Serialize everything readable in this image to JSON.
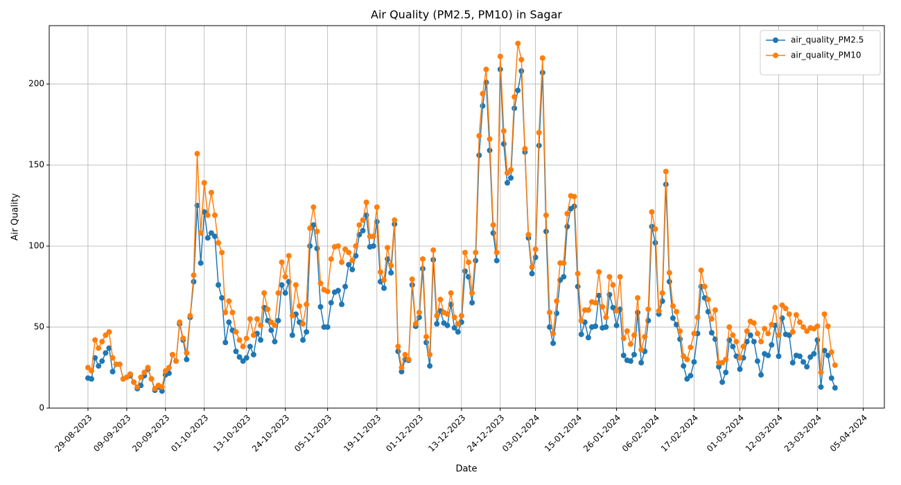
{
  "chart_data": {
    "type": "line",
    "title": "Air Quality (PM2.5, PM10) in Sagar",
    "xlabel": "Date",
    "ylabel": "Air Quality",
    "x": [
      "29-08-2023",
      "30-08-2023",
      "31-08-2023",
      "01-09-2023",
      "02-09-2023",
      "03-09-2023",
      "04-09-2023",
      "05-09-2023",
      "06-09-2023",
      "07-09-2023",
      "08-09-2023",
      "09-09-2023",
      "10-09-2023",
      "11-09-2023",
      "12-09-2023",
      "13-09-2023",
      "14-09-2023",
      "15-09-2023",
      "16-09-2023",
      "17-09-2023",
      "18-09-2023",
      "19-09-2023",
      "20-09-2023",
      "21-09-2023",
      "22-09-2023",
      "23-09-2023",
      "24-09-2023",
      "25-09-2023",
      "26-09-2023",
      "27-09-2023",
      "28-09-2023",
      "29-09-2023",
      "30-09-2023",
      "01-10-2023",
      "02-10-2023",
      "03-10-2023",
      "04-10-2023",
      "05-10-2023",
      "06-10-2023",
      "07-10-2023",
      "08-10-2023",
      "09-10-2023",
      "10-10-2023",
      "11-10-2023",
      "12-10-2023",
      "13-10-2023",
      "14-10-2023",
      "15-10-2023",
      "16-10-2023",
      "17-10-2023",
      "18-10-2023",
      "19-10-2023",
      "20-10-2023",
      "21-10-2023",
      "22-10-2023",
      "23-10-2023",
      "24-10-2023",
      "25-10-2023",
      "26-10-2023",
      "27-10-2023",
      "28-10-2023",
      "29-10-2023",
      "30-10-2023",
      "31-10-2023",
      "01-11-2023",
      "02-11-2023",
      "03-11-2023",
      "04-11-2023",
      "05-11-2023",
      "06-11-2023",
      "07-11-2023",
      "08-11-2023",
      "09-11-2023",
      "10-11-2023",
      "11-11-2023",
      "12-11-2023",
      "13-11-2023",
      "14-11-2023",
      "15-11-2023",
      "16-11-2023",
      "17-11-2023",
      "18-11-2023",
      "19-11-2023",
      "20-11-2023",
      "21-11-2023",
      "22-11-2023",
      "23-11-2023",
      "24-11-2023",
      "25-11-2023",
      "26-11-2023",
      "27-11-2023",
      "28-11-2023",
      "29-11-2023",
      "30-11-2023",
      "01-12-2023",
      "02-12-2023",
      "03-12-2023",
      "04-12-2023",
      "05-12-2023",
      "06-12-2023",
      "07-12-2023",
      "08-12-2023",
      "09-12-2023",
      "10-12-2023",
      "11-12-2023",
      "12-12-2023",
      "13-12-2023",
      "14-12-2023",
      "15-12-2023",
      "16-12-2023",
      "17-12-2023",
      "18-12-2023",
      "19-12-2023",
      "20-12-2023",
      "21-12-2023",
      "22-12-2023",
      "23-12-2023",
      "24-12-2023",
      "25-12-2023",
      "26-12-2023",
      "27-12-2023",
      "28-12-2023",
      "29-12-2023",
      "30-12-2023",
      "31-12-2023",
      "01-01-2024",
      "02-01-2024",
      "03-01-2024",
      "04-01-2024",
      "05-01-2024",
      "06-01-2024",
      "07-01-2024",
      "08-01-2024",
      "09-01-2024",
      "10-01-2024",
      "11-01-2024",
      "12-01-2024",
      "13-01-2024",
      "14-01-2024",
      "15-01-2024",
      "16-01-2024",
      "17-01-2024",
      "18-01-2024",
      "19-01-2024",
      "20-01-2024",
      "21-01-2024",
      "22-01-2024",
      "23-01-2024",
      "24-01-2024",
      "25-01-2024",
      "26-01-2024",
      "27-01-2024",
      "28-01-2024",
      "29-01-2024",
      "30-01-2024",
      "31-01-2024",
      "01-02-2024",
      "02-02-2024",
      "03-02-2024",
      "04-02-2024",
      "05-02-2024",
      "06-02-2024",
      "07-02-2024",
      "08-02-2024",
      "09-02-2024",
      "10-02-2024",
      "11-02-2024",
      "12-02-2024",
      "13-02-2024",
      "14-02-2024",
      "15-02-2024",
      "16-02-2024",
      "17-02-2024",
      "18-02-2024",
      "19-02-2024",
      "20-02-2024",
      "21-02-2024",
      "22-02-2024",
      "23-02-2024",
      "24-02-2024",
      "25-02-2024",
      "26-02-2024",
      "27-02-2024",
      "28-02-2024",
      "29-02-2024",
      "01-03-2024",
      "02-03-2024",
      "03-03-2024",
      "04-03-2024",
      "05-03-2024",
      "06-03-2024",
      "07-03-2024",
      "08-03-2024",
      "09-03-2024",
      "10-03-2024",
      "11-03-2024",
      "12-03-2024",
      "13-03-2024",
      "14-03-2024",
      "15-03-2024",
      "16-03-2024",
      "17-03-2024",
      "18-03-2024",
      "19-03-2024",
      "20-03-2024",
      "21-03-2024",
      "22-03-2024",
      "23-03-2024",
      "24-03-2024",
      "25-03-2024",
      "26-03-2024",
      "27-03-2024",
      "28-03-2024"
    ],
    "series": [
      {
        "name": "air_quality_PM2.5",
        "color": "#1f77b4",
        "values": [
          18.5,
          18,
          31,
          26,
          29,
          34,
          37,
          22.5,
          27,
          27,
          18,
          19,
          20,
          16,
          12,
          14,
          20,
          24,
          18,
          11,
          13,
          10.5,
          20.5,
          21.5,
          33,
          29,
          52,
          42,
          30,
          56,
          78,
          125,
          89.5,
          121,
          105,
          108,
          106,
          76,
          68,
          40.5,
          53,
          48,
          35,
          31.5,
          29,
          31,
          38,
          33,
          46,
          42,
          62,
          54,
          48,
          41,
          54,
          76,
          71,
          78,
          45,
          58,
          53,
          42,
          47,
          100,
          113,
          98.5,
          62.5,
          50,
          50,
          65,
          71.5,
          72.5,
          64,
          75,
          88.5,
          85.5,
          94,
          107,
          109.5,
          119,
          99.5,
          100,
          115,
          78,
          74,
          92,
          83.5,
          113.5,
          35,
          22.5,
          30,
          29.5,
          76,
          50.5,
          56,
          86,
          40.5,
          26,
          91.5,
          52,
          60,
          52.5,
          51,
          64,
          49.5,
          47,
          53,
          84.5,
          81,
          65,
          91,
          156,
          186.5,
          201,
          159,
          108,
          91,
          209,
          163,
          139,
          142,
          185,
          196,
          208,
          158,
          105,
          83,
          93,
          162,
          207,
          109,
          50,
          40,
          58.5,
          79,
          81,
          112,
          123,
          124.5,
          75,
          45.5,
          53,
          43.5,
          50,
          50.5,
          69.5,
          49.5,
          50,
          70,
          62,
          51,
          61,
          32.5,
          29.5,
          29,
          33,
          59,
          28,
          35,
          54,
          112,
          102,
          58,
          66,
          138,
          78,
          55.5,
          51.5,
          42.5,
          26,
          18,
          20,
          28.5,
          46,
          75,
          68,
          59.5,
          46.5,
          42.5,
          25.5,
          16,
          22,
          42,
          38,
          32,
          24,
          31,
          41,
          45,
          41,
          29,
          20.5,
          33.5,
          32.5,
          39,
          51,
          32,
          55.5,
          45.5,
          45,
          28,
          32.5,
          32,
          28.5,
          25.5,
          31.5,
          33.5,
          42,
          13,
          35.5,
          32.5,
          18.5,
          12.5
        ]
      },
      {
        "name": "air_quality_PM10",
        "color": "#ff7f0e",
        "values": [
          25,
          23,
          42,
          37,
          41,
          45,
          47,
          31,
          27,
          27,
          18,
          19,
          21,
          16,
          13,
          19,
          22,
          25,
          18,
          12,
          14,
          13,
          23,
          25,
          33,
          29,
          53,
          43,
          34,
          57,
          82,
          157,
          108,
          139,
          119,
          133,
          119,
          102,
          96,
          59,
          66,
          59,
          47,
          42,
          38,
          43,
          55,
          45,
          55,
          51,
          71,
          61,
          53,
          51,
          71,
          90,
          81,
          94,
          57,
          76,
          63,
          52,
          64,
          111,
          124,
          109,
          77,
          73,
          72,
          92,
          99.5,
          100,
          90,
          98,
          96,
          91,
          100,
          113,
          116,
          127,
          106,
          106,
          124,
          84,
          79,
          99,
          88,
          116,
          38,
          25,
          33,
          30,
          79.5,
          52,
          59,
          92,
          44,
          33,
          97.5,
          57,
          67,
          59,
          58,
          71,
          56,
          52,
          57,
          96,
          90,
          71,
          96,
          168,
          194,
          209,
          166,
          113,
          96,
          217,
          171,
          145,
          147,
          192,
          225,
          215,
          160,
          107,
          87,
          98,
          170,
          216,
          119,
          59,
          46,
          66,
          89.5,
          89.5,
          120,
          131,
          130.5,
          83,
          54,
          60.5,
          60.5,
          65.5,
          65,
          84,
          62.5,
          56,
          81,
          76,
          60,
          81,
          43,
          47.5,
          39.5,
          45,
          68,
          36,
          44,
          61,
          121,
          110.5,
          60,
          71,
          146,
          83.5,
          63,
          59.5,
          47.5,
          32,
          30,
          37.5,
          46,
          56,
          85,
          75,
          67,
          55,
          60.5,
          28,
          28,
          30,
          50,
          45,
          41,
          31,
          38,
          47.5,
          53.5,
          52.5,
          46,
          41,
          49,
          46,
          51.5,
          62,
          45,
          63.5,
          61.5,
          58,
          47,
          57.5,
          53,
          50,
          47.5,
          49.5,
          49,
          50.5,
          22,
          58,
          50.5,
          34.5,
          26.5
        ]
      }
    ],
    "xlim": [
      "18-08-2023",
      "11-04-2024"
    ],
    "xticks": [
      "29-08-2023",
      "09-09-2023",
      "20-09-2023",
      "01-10-2023",
      "13-10-2023",
      "24-10-2023",
      "05-11-2023",
      "19-11-2023",
      "01-12-2023",
      "13-12-2023",
      "24-12-2023",
      "03-01-2024",
      "15-01-2024",
      "26-01-2024",
      "06-02-2024",
      "17-02-2024",
      "01-03-2024",
      "12-03-2024",
      "23-03-2024",
      "05-04-2024"
    ],
    "ylim": [
      0,
      236
    ],
    "yticks": [
      0,
      50,
      100,
      150,
      200
    ],
    "grid": true,
    "legend": "upper right"
  }
}
